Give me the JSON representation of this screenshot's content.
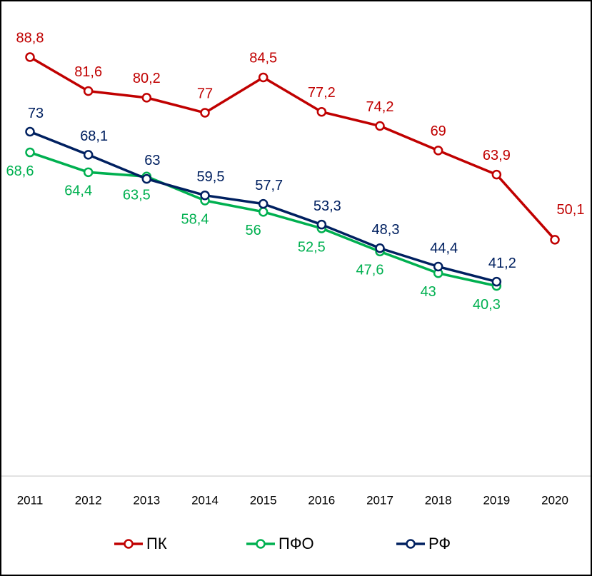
{
  "chart_data": {
    "type": "line",
    "categories": [
      "2011",
      "2012",
      "2013",
      "2014",
      "2015",
      "2016",
      "2017",
      "2018",
      "2019",
      "2020"
    ],
    "ylim": [
      0,
      100
    ],
    "series": [
      {
        "name": "ПК",
        "color": "#c00000",
        "values": [
          88.8,
          81.6,
          80.2,
          77,
          84.5,
          77.2,
          74.2,
          69,
          63.9,
          50.1
        ],
        "value_labels": [
          "88,8",
          "81,6",
          "80,2",
          "77",
          "84,5",
          "77,2",
          "74,2",
          "69",
          "63,9",
          "50,1"
        ]
      },
      {
        "name": "ПФО",
        "color": "#00b050",
        "values": [
          68.6,
          64.4,
          63.5,
          58.4,
          56,
          52.5,
          47.6,
          43,
          40.3,
          null
        ],
        "value_labels": [
          "68,6",
          "64,4",
          "63,5",
          "58,4",
          "56",
          "52,5",
          "47,6",
          "43",
          "40,3",
          null
        ]
      },
      {
        "name": "РФ",
        "color": "#002060",
        "values": [
          73,
          68.1,
          63,
          59.5,
          57.7,
          53.3,
          48.3,
          44.4,
          41.2,
          null
        ],
        "value_labels": [
          "73",
          "68,1",
          "63",
          "59,5",
          "57,7",
          "53,3",
          "48,3",
          "44,4",
          "41,2",
          null
        ]
      }
    ],
    "legend": "bottom"
  }
}
